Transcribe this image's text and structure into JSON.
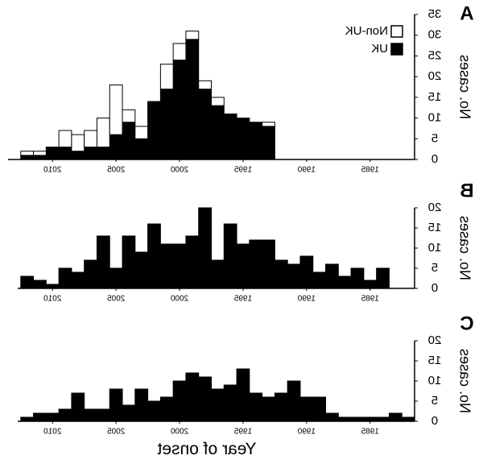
{
  "figure": {
    "xlabel": "Year of onset",
    "legend": {
      "placement": "top-right",
      "entries": [
        {
          "label": "Non-UK",
          "color": "#ffffff"
        },
        {
          "label": "UK",
          "color": "#000000"
        }
      ]
    }
  },
  "chart_data": [
    {
      "panel": "A",
      "type": "bar",
      "stacked": true,
      "ylabel": "No. cases",
      "ylim": [
        0,
        35
      ],
      "yticks": [
        0,
        5,
        10,
        15,
        20,
        25,
        30,
        35
      ],
      "xlim": [
        1981.5,
        2013.5
      ],
      "xticks": [
        2010,
        2005,
        2000,
        1995,
        1990,
        1985
      ],
      "x_reversed": true,
      "categories": [
        2012,
        2011,
        2010,
        2009,
        2008,
        2007,
        2006,
        2005,
        2004,
        2003,
        2002,
        2001,
        2000,
        1999,
        1998,
        1997,
        1996,
        1995,
        1994,
        1993
      ],
      "series": [
        {
          "name": "UK",
          "color": "#000000",
          "values": [
            1,
            1,
            3,
            3,
            2,
            3,
            3,
            6,
            9,
            5,
            14,
            17,
            24,
            29,
            17,
            13,
            11,
            10,
            9,
            8
          ]
        },
        {
          "name": "Non-UK",
          "color": "#ffffff",
          "values": [
            1,
            1,
            0,
            4,
            4,
            4,
            7,
            12,
            3,
            3,
            0,
            6,
            4,
            2,
            2,
            2,
            0,
            0,
            0,
            1
          ]
        }
      ]
    },
    {
      "panel": "B",
      "type": "bar",
      "ylabel": "No. cases",
      "ylim": [
        0,
        20
      ],
      "yticks": [
        0,
        5,
        10,
        15,
        20
      ],
      "xlim": [
        1981.5,
        2013.5
      ],
      "xticks": [
        2010,
        2005,
        2000,
        1995,
        1990,
        1985
      ],
      "x_reversed": true,
      "categories": [
        2012,
        2011,
        2010,
        2009,
        2008,
        2007,
        2006,
        2005,
        2004,
        2003,
        2002,
        2001,
        2000,
        1999,
        1998,
        1997,
        1996,
        1995,
        1994,
        1993,
        1992,
        1991,
        1990,
        1989,
        1988,
        1987,
        1986,
        1985,
        1984
      ],
      "series": [
        {
          "name": "",
          "color": "#000000",
          "values": [
            3,
            2,
            1,
            5,
            4,
            7,
            13,
            5,
            13,
            9,
            16,
            11,
            11,
            13,
            20,
            7,
            16,
            11,
            12,
            12,
            7,
            6,
            8,
            4,
            6,
            3,
            5,
            2,
            5
          ]
        }
      ]
    },
    {
      "panel": "C",
      "type": "bar",
      "ylabel": "No. cases",
      "ylim": [
        0,
        20
      ],
      "yticks": [
        0,
        5,
        10,
        15,
        20
      ],
      "xlim": [
        1981.5,
        2013.5
      ],
      "xticks": [
        2010,
        2005,
        2000,
        1995,
        1990,
        1985
      ],
      "x_reversed": true,
      "categories": [
        2013,
        2012,
        2011,
        2010,
        2009,
        2008,
        2007,
        2006,
        2005,
        2004,
        2003,
        2002,
        2001,
        2000,
        1999,
        1998,
        1997,
        1996,
        1995,
        1994,
        1993,
        1992,
        1991,
        1990,
        1989,
        1988,
        1987,
        1986,
        1985,
        1984,
        1983,
        1982
      ],
      "series": [
        {
          "name": "",
          "color": "#000000",
          "values": [
            0,
            1,
            2,
            2,
            3,
            7,
            3,
            3,
            8,
            4,
            8,
            5,
            6,
            10,
            12,
            11,
            8,
            9,
            13,
            7,
            6,
            7,
            10,
            6,
            6,
            2,
            1,
            1,
            1,
            1,
            2,
            1
          ]
        }
      ]
    }
  ]
}
